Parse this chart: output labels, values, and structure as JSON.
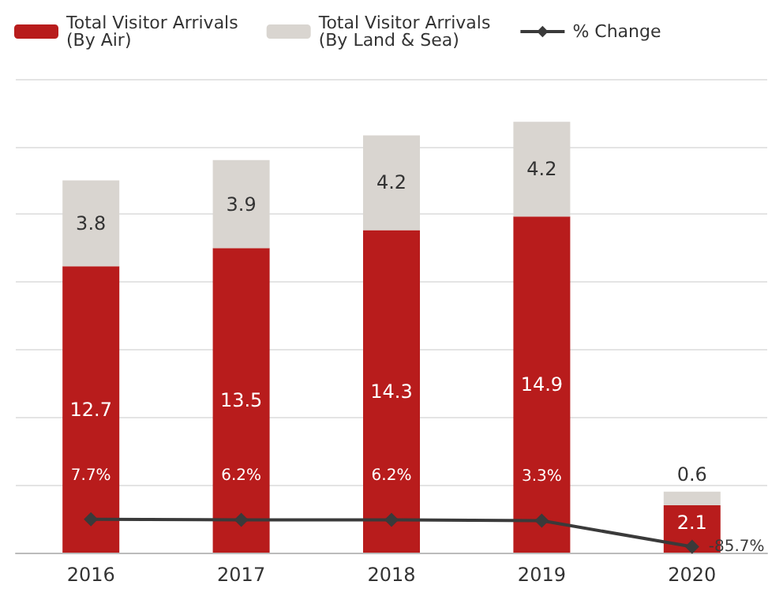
{
  "chart_data": {
    "type": "bar",
    "stacked": true,
    "categories": [
      "2016",
      "2017",
      "2018",
      "2019",
      "2020"
    ],
    "series": [
      {
        "name": "Total Visitor Arrivals\n(By Air)",
        "color": "#b81c1c",
        "values": [
          12.7,
          13.5,
          14.3,
          14.9,
          2.1
        ]
      },
      {
        "name": "Total Visitor Arrivals\n(By Land & Sea)",
        "color": "#d9d5d0",
        "values": [
          3.8,
          3.9,
          4.2,
          4.2,
          0.6
        ]
      },
      {
        "name": "% Change",
        "type": "line",
        "axis": "y2",
        "color": "#3a3a3a",
        "marker": "diamond",
        "values": [
          7.7,
          6.2,
          6.2,
          3.3,
          -85.7
        ],
        "value_labels": [
          "7.7%",
          "6.2%",
          "6.2%",
          "3.3%",
          "-85.7%"
        ]
      }
    ],
    "data_labels": true,
    "grid": "y",
    "legend": "top",
    "tick_labels": "x"
  }
}
